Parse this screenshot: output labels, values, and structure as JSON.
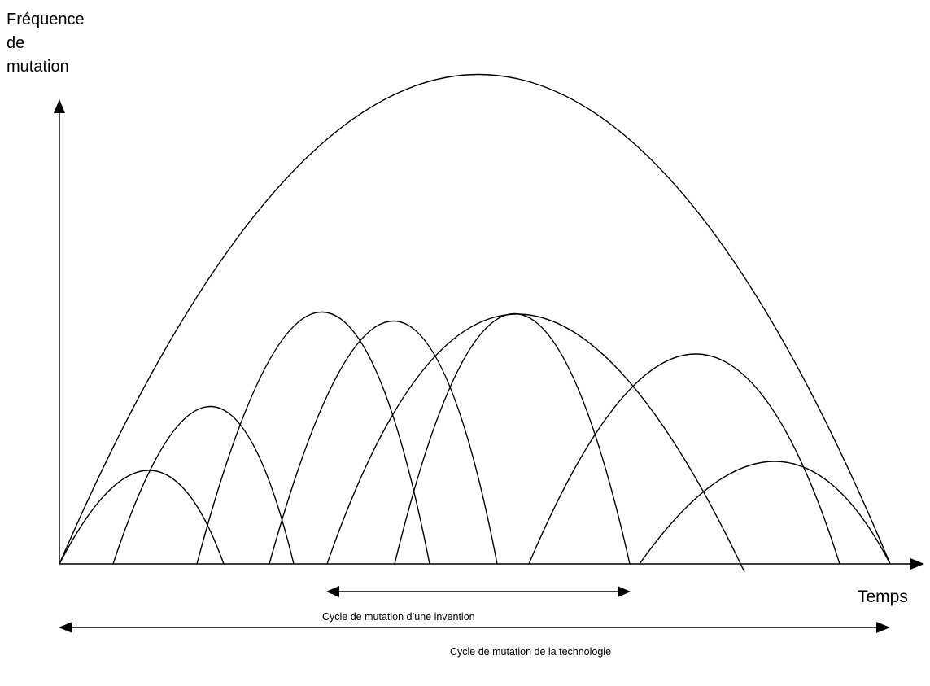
{
  "diagram": {
    "y_axis_title_lines": [
      "Fréquence",
      "de",
      "mutation"
    ],
    "x_axis_title": "Temps",
    "invention_cycle_label": "Cycle de mutation d’une invention",
    "technology_cycle_label": "Cycle de mutation de la technologie",
    "stroke_color": "#000000",
    "background_color": "#ffffff"
  }
}
